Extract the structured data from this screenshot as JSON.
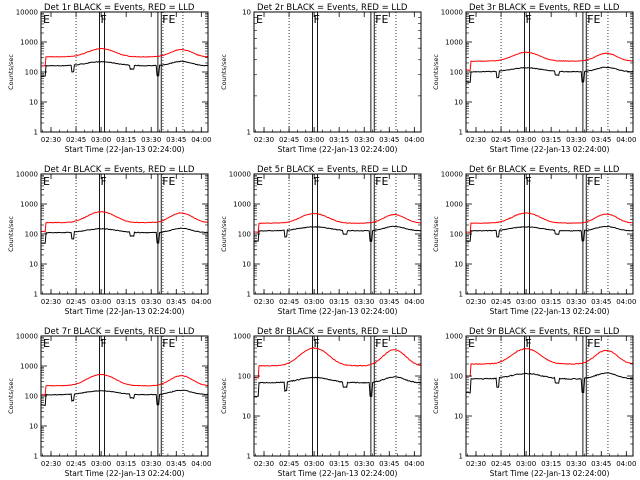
{
  "chart_data": {
    "type": "line",
    "layout": "3x3 grid",
    "x_tick_labels": [
      "02:30",
      "02:45",
      "03:00",
      "03:15",
      "03:30",
      "03:45",
      "04:00"
    ],
    "y_scale": "log",
    "xlabel": "Start Time (22-Jan-13 02:24:00)",
    "ylabel": "Counts/sec",
    "series_colors": {
      "events": "#000000",
      "lld": "#ff0000"
    },
    "panels": [
      {
        "id": "det1r",
        "title": "Det 1r BLACK = Events, RED = LLD",
        "ylim": [
          1,
          10000
        ],
        "y_tick_labels": [
          "1",
          "10",
          "100",
          "1000",
          "10000"
        ],
        "has_data": true,
        "events_level": 190,
        "lld_level": 320,
        "lld_peak": 600,
        "markers": [
          {
            "label": "E",
            "x": "02:24"
          },
          {
            "label": "F",
            "x": "03:00"
          },
          {
            "label": "FE",
            "x": "03:36"
          }
        ]
      },
      {
        "id": "det2r",
        "title": "Det 2r BLACK = Events, RED = LLD",
        "ylim": [
          1,
          10
        ],
        "y_tick_labels": [
          "1",
          "10"
        ],
        "has_data": false,
        "markers": [
          {
            "label": "E",
            "x": "02:24"
          },
          {
            "label": "F",
            "x": "03:00"
          },
          {
            "label": "FE",
            "x": "03:36"
          }
        ]
      },
      {
        "id": "det3r",
        "title": "Det 3r BLACK = Events, RED = LLD",
        "ylim": [
          1,
          10000
        ],
        "y_tick_labels": [
          "1",
          "10",
          "100",
          "1000",
          "10000"
        ],
        "has_data": true,
        "events_level": 120,
        "lld_level": 230,
        "lld_peak": 450,
        "markers": [
          {
            "label": "E",
            "x": "02:24"
          },
          {
            "label": "F",
            "x": "03:00"
          },
          {
            "label": "FE",
            "x": "03:36"
          }
        ]
      },
      {
        "id": "det4r",
        "title": "Det 4r BLACK = Events, RED = LLD",
        "ylim": [
          1,
          10000
        ],
        "y_tick_labels": [
          "1",
          "10",
          "100",
          "1000",
          "10000"
        ],
        "has_data": true,
        "events_level": 130,
        "lld_level": 240,
        "lld_peak": 550,
        "markers": [
          {
            "label": "E",
            "x": "02:24"
          },
          {
            "label": "F",
            "x": "03:00"
          },
          {
            "label": "FE",
            "x": "03:36"
          }
        ]
      },
      {
        "id": "det5r",
        "title": "Det 5r BLACK = Events, RED = LLD",
        "ylim": [
          1,
          10000
        ],
        "y_tick_labels": [
          "1",
          "10",
          "100",
          "1000",
          "10000"
        ],
        "has_data": true,
        "events_level": 150,
        "lld_level": 230,
        "lld_peak": 480,
        "markers": [
          {
            "label": "E",
            "x": "02:24"
          },
          {
            "label": "F",
            "x": "03:00"
          },
          {
            "label": "FE",
            "x": "03:36"
          }
        ]
      },
      {
        "id": "det6r",
        "title": "Det 6r BLACK = Events, RED = LLD",
        "ylim": [
          1,
          10000
        ],
        "y_tick_labels": [
          "1",
          "10",
          "100",
          "1000",
          "10000"
        ],
        "has_data": true,
        "events_level": 150,
        "lld_level": 230,
        "lld_peak": 500,
        "markers": [
          {
            "label": "E",
            "x": "02:24"
          },
          {
            "label": "F",
            "x": "03:00"
          },
          {
            "label": "FE",
            "x": "03:36"
          }
        ]
      },
      {
        "id": "det7r",
        "title": "Det 7r BLACK = Events, RED = LLD",
        "ylim": [
          1,
          10000
        ],
        "y_tick_labels": [
          "1",
          "10",
          "100",
          "1000",
          "10000"
        ],
        "has_data": true,
        "events_level": 130,
        "lld_level": 220,
        "lld_peak": 520,
        "markers": [
          {
            "label": "E",
            "x": "02:24"
          },
          {
            "label": "F",
            "x": "03:00"
          },
          {
            "label": "FE",
            "x": "03:36"
          }
        ]
      },
      {
        "id": "det8r",
        "title": "Det 8r BLACK = Events, RED = LLD",
        "ylim": [
          1,
          1000
        ],
        "y_tick_labels": [
          "1",
          "10",
          "100",
          "1000"
        ],
        "has_data": true,
        "events_level": 80,
        "lld_level": 180,
        "lld_peak": 500,
        "markers": [
          {
            "label": "E",
            "x": "02:24"
          },
          {
            "label": "F",
            "x": "03:00"
          },
          {
            "label": "FE",
            "x": "03:36"
          }
        ]
      },
      {
        "id": "det9r",
        "title": "Det 9r BLACK = Events, RED = LLD",
        "ylim": [
          1,
          1000
        ],
        "y_tick_labels": [
          "1",
          "10",
          "100",
          "1000"
        ],
        "has_data": true,
        "events_level": 100,
        "lld_level": 200,
        "lld_peak": 480,
        "markers": [
          {
            "label": "E",
            "x": "02:24"
          },
          {
            "label": "F",
            "x": "03:00"
          },
          {
            "label": "FE",
            "x": "03:36"
          }
        ]
      }
    ]
  }
}
